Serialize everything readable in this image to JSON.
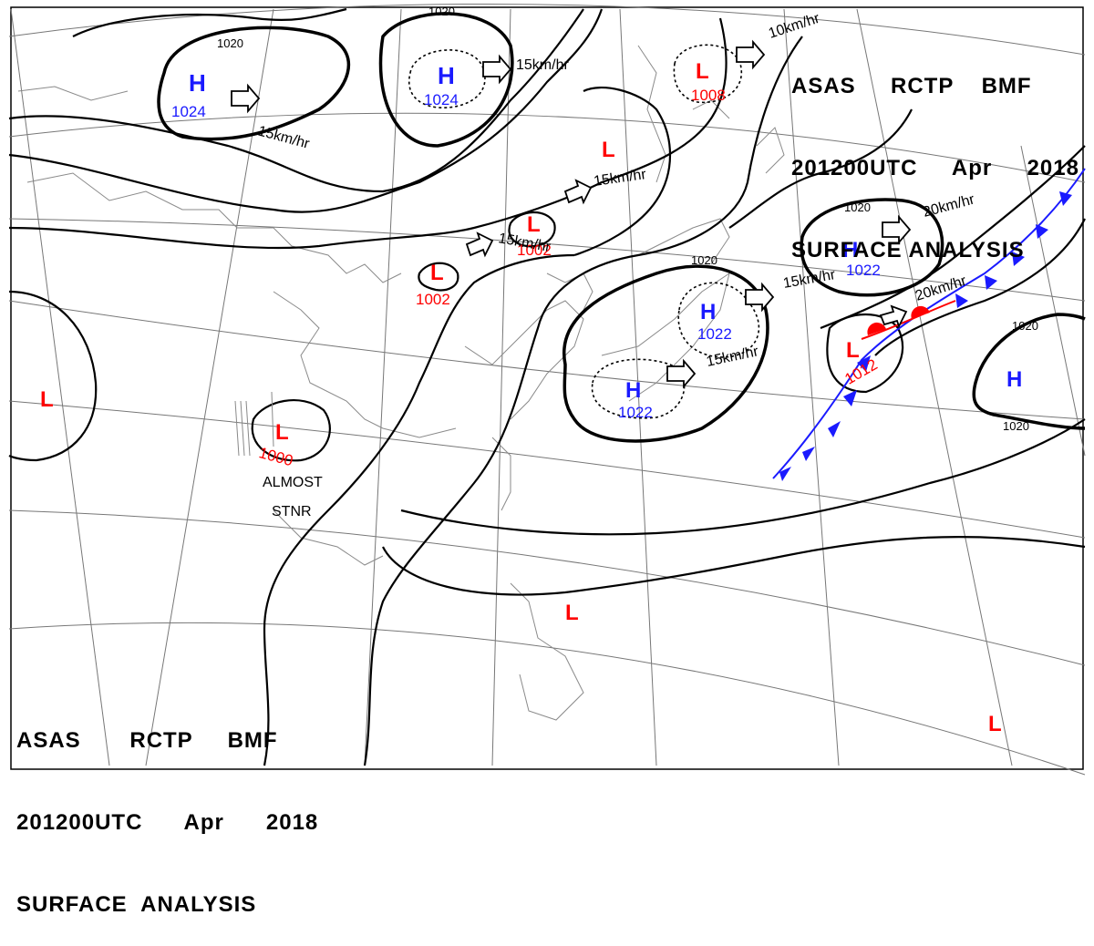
{
  "header": {
    "line1": "ASAS     RCTP    BMF",
    "line2": "201200UTC     Apr     2018",
    "line3": "SURFACE ANALYSIS"
  },
  "footer": {
    "line1": "ASAS       RCTP     BMF",
    "line2": "201200UTC      Apr      2018",
    "line3": "SURFACE  ANALYSIS"
  },
  "colors": {
    "high": "#1a1aff",
    "low": "#ff0000",
    "isobar": "#000000",
    "coast": "#8a8a8a",
    "cold_front": "#1a1aff",
    "warm_front": "#ff0000"
  },
  "symbols": {
    "high": "H",
    "low": "L"
  },
  "pressure_centers": [
    {
      "type": "H",
      "value": "1024"
    },
    {
      "type": "H",
      "value": "1024"
    },
    {
      "type": "L",
      "value": "1008"
    },
    {
      "type": "L",
      "value": ""
    },
    {
      "type": "L",
      "value": "1002"
    },
    {
      "type": "L",
      "value": "1002"
    },
    {
      "type": "H",
      "value": "1022"
    },
    {
      "type": "H",
      "value": "1022"
    },
    {
      "type": "H",
      "value": "1022"
    },
    {
      "type": "L",
      "value": "1012"
    },
    {
      "type": "H",
      "value": ""
    },
    {
      "type": "L",
      "value": "1000"
    },
    {
      "type": "L",
      "value": ""
    },
    {
      "type": "L",
      "value": ""
    },
    {
      "type": "L",
      "value": ""
    }
  ],
  "motion_labels": [
    "15km/hr",
    "15km/hr",
    "10km/hr",
    "15km/hr",
    "15km/hr",
    "20km/hr",
    "15km/hr",
    "20km/hr",
    "15km/hr"
  ],
  "isobar_labels": [
    "1020",
    "1020",
    "1020",
    "1020",
    "1020",
    "1020"
  ],
  "annotations": {
    "stationary": "ALMOST\nSTNR"
  }
}
